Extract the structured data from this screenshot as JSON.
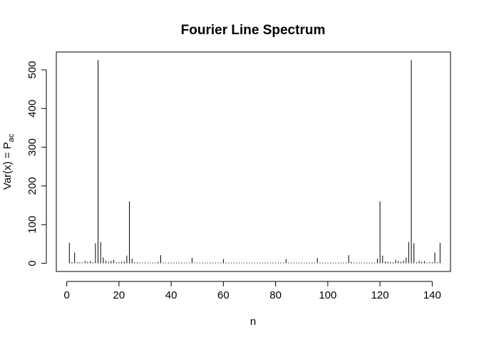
{
  "chart_data": {
    "type": "bar",
    "title": "Fourier Line Spectrum",
    "xlabel": "n",
    "ylabel": {
      "prefix": "Var(x) = P",
      "subscript": "ac"
    },
    "xlim": [
      -4,
      147
    ],
    "ylim": [
      -21,
      546
    ],
    "x_ticks": [
      0,
      20,
      40,
      60,
      80,
      100,
      120,
      140
    ],
    "y_ticks": [
      0,
      100,
      200,
      300,
      400,
      500
    ],
    "grid": false,
    "legend": "none",
    "x": [
      0,
      1,
      2,
      3,
      4,
      5,
      6,
      7,
      8,
      9,
      10,
      11,
      12,
      13,
      14,
      15,
      16,
      17,
      18,
      19,
      20,
      21,
      22,
      23,
      24,
      25,
      26,
      27,
      28,
      29,
      30,
      31,
      32,
      33,
      34,
      35,
      36,
      37,
      38,
      39,
      40,
      41,
      42,
      43,
      44,
      45,
      46,
      47,
      48,
      49,
      50,
      51,
      52,
      53,
      54,
      55,
      56,
      57,
      58,
      59,
      60,
      61,
      62,
      63,
      64,
      65,
      66,
      67,
      68,
      69,
      70,
      71,
      72,
      73,
      74,
      75,
      76,
      77,
      78,
      79,
      80,
      81,
      82,
      83,
      84,
      85,
      86,
      87,
      88,
      89,
      90,
      91,
      92,
      93,
      94,
      95,
      96,
      97,
      98,
      99,
      100,
      101,
      102,
      103,
      104,
      105,
      106,
      107,
      108,
      109,
      110,
      111,
      112,
      113,
      114,
      115,
      116,
      117,
      118,
      119,
      120,
      121,
      122,
      123,
      124,
      125,
      126,
      127,
      128,
      129,
      130,
      131,
      132,
      133,
      134,
      135,
      136,
      137,
      138,
      139,
      140,
      141,
      142,
      143
    ],
    "values": [
      0,
      53,
      3,
      28,
      3,
      3,
      2,
      6,
      4,
      6,
      3,
      52,
      525,
      55,
      15,
      7,
      4,
      6,
      9,
      3,
      3,
      4,
      5,
      20,
      160,
      12,
      3,
      3,
      2,
      2,
      2,
      2,
      2,
      2,
      2,
      4,
      21,
      2,
      2,
      2,
      2,
      2,
      2,
      2,
      2,
      2,
      2,
      2,
      14,
      2,
      2,
      2,
      2,
      2,
      2,
      2,
      2,
      2,
      2,
      2,
      11,
      2,
      2,
      2,
      2,
      2,
      2,
      2,
      2,
      2,
      2,
      2,
      2,
      2,
      2,
      2,
      2,
      2,
      2,
      2,
      2,
      2,
      2,
      2,
      11,
      2,
      2,
      2,
      2,
      2,
      2,
      2,
      2,
      2,
      2,
      2,
      14,
      2,
      2,
      2,
      2,
      2,
      2,
      2,
      2,
      2,
      2,
      2,
      21,
      4,
      2,
      2,
      2,
      2,
      2,
      2,
      2,
      2,
      2,
      12,
      160,
      20,
      5,
      4,
      3,
      3,
      9,
      6,
      4,
      7,
      15,
      55,
      525,
      52,
      3,
      6,
      4,
      6,
      2,
      3,
      3,
      28,
      3,
      53
    ]
  }
}
